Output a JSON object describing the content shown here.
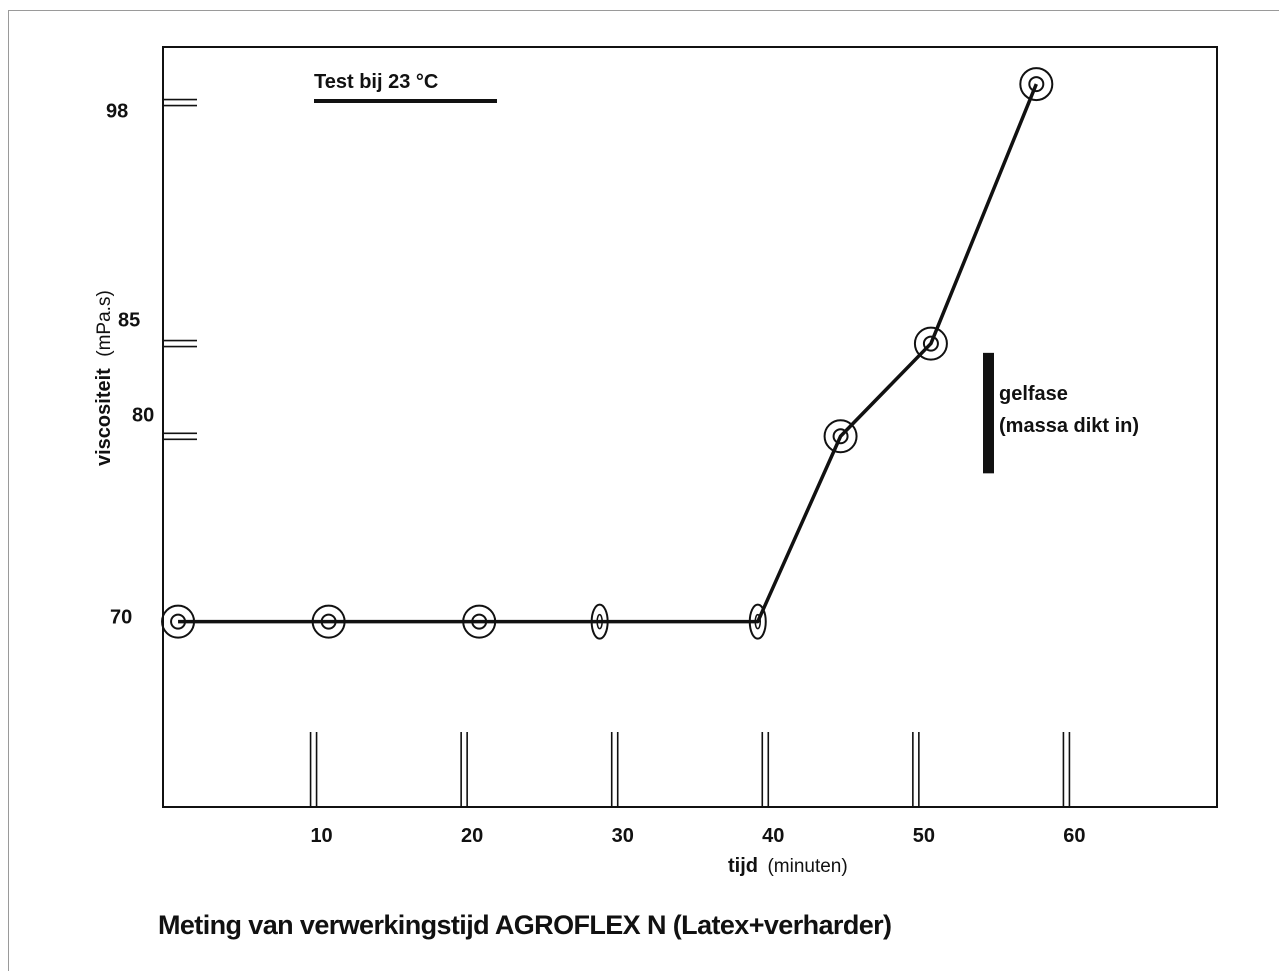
{
  "chart_data": {
    "type": "line",
    "title": "Meting van verwerkingstijd AGROFLEX N (Latex+verharder)",
    "subtitle": "Test  bij 23 °C",
    "xlabel": {
      "main": "tijd",
      "unit": "(minuten)"
    },
    "ylabel": {
      "main": "viscositeit",
      "unit": "(mPa.s)"
    },
    "x_ticks": [
      "10",
      "20",
      "30",
      "40",
      "50",
      "60"
    ],
    "y_ticks": [
      "70",
      "80",
      "85",
      "98"
    ],
    "xlim": [
      0,
      70
    ],
    "ylim": [
      60,
      101
    ],
    "grid": false,
    "series": [
      {
        "x": [
          1,
          11,
          21,
          29,
          39.5,
          45,
          51,
          58
        ],
        "y": [
          70,
          70,
          70,
          70,
          70,
          80,
          85,
          99
        ]
      }
    ],
    "annotation": {
      "lines": [
        "gelfase",
        "(massa dikt in)"
      ],
      "y_range": [
        78,
        84.5
      ]
    }
  }
}
